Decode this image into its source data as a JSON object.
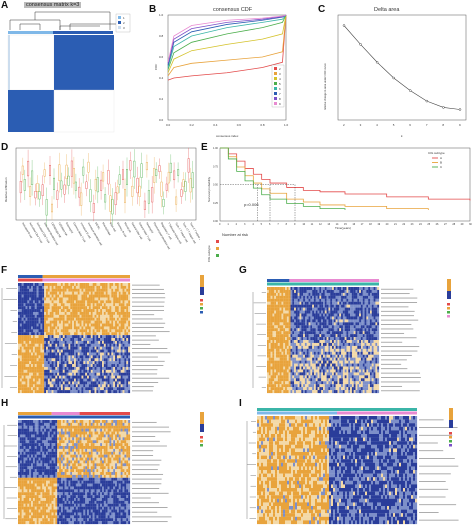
{
  "panels": {
    "a": {
      "label": "A",
      "title": "consensus matrix k=3",
      "legend": [
        "1",
        "2",
        "3"
      ]
    },
    "b": {
      "label": "B",
      "title": "consensus CDF",
      "xlabel": "consensus index",
      "ylabel": "CDF",
      "legend": [
        "2",
        "3",
        "4",
        "5",
        "6",
        "7",
        "8",
        "9"
      ]
    },
    "c": {
      "label": "C",
      "title": "Delta area",
      "xlabel": "k",
      "ylabel": "relative change in area under CDF curve"
    },
    "d": {
      "label": "D",
      "ylabel": "Relative infiltration"
    },
    "e": {
      "label": "E",
      "ylabel": "Survival probability",
      "xlabel": "Time(years)",
      "pvalue": "p=0.006",
      "legend_title": "CIG subtype",
      "legend": [
        "A",
        "B",
        "C"
      ],
      "risk_title": "Number at risk",
      "risk_ylabel": "CIG subtype"
    },
    "f": {
      "label": "F"
    },
    "g": {
      "label": "G"
    },
    "h": {
      "label": "H"
    },
    "i": {
      "label": "I"
    }
  },
  "colors": {
    "blue": "#2b5db3",
    "orange": "#e8a33c",
    "red": "#e34a4a",
    "green": "#4cae4c",
    "pink": "#e88ad1",
    "teal": "#3bb5a8",
    "purple": "#7b4fc8",
    "lightblue": "#7fb8e8"
  },
  "chart_data": [
    {
      "type": "line",
      "panel": "B",
      "title": "consensus CDF",
      "xlabel": "consensus index",
      "ylabel": "CDF",
      "xlim": [
        0,
        1
      ],
      "ylim": [
        0,
        1
      ],
      "x_ticks": [
        "0.0",
        "0.2",
        "0.4",
        "0.6",
        "0.8",
        "1.0"
      ],
      "y_ticks": [
        "0.0",
        "0.2",
        "0.4",
        "0.6",
        "0.8",
        "1.0"
      ],
      "legend_placement": "right",
      "series": [
        {
          "name": "2",
          "x": [
            0,
            0.05,
            0.2,
            0.5,
            0.8,
            0.97,
            1
          ],
          "y": [
            0.38,
            0.4,
            0.42,
            0.45,
            0.5,
            0.55,
            1
          ]
        },
        {
          "name": "3",
          "x": [
            0,
            0.05,
            0.2,
            0.5,
            0.8,
            0.97,
            1
          ],
          "y": [
            0.42,
            0.5,
            0.54,
            0.57,
            0.6,
            0.65,
            1
          ]
        },
        {
          "name": "4",
          "x": [
            0,
            0.05,
            0.2,
            0.5,
            0.8,
            0.97,
            1
          ],
          "y": [
            0.45,
            0.58,
            0.66,
            0.72,
            0.77,
            0.82,
            1
          ]
        },
        {
          "name": "5",
          "x": [
            0,
            0.05,
            0.2,
            0.5,
            0.8,
            0.97,
            1
          ],
          "y": [
            0.48,
            0.64,
            0.74,
            0.82,
            0.88,
            0.93,
            1
          ]
        },
        {
          "name": "6",
          "x": [
            0,
            0.05,
            0.2,
            0.5,
            0.8,
            0.97,
            1
          ],
          "y": [
            0.5,
            0.7,
            0.8,
            0.88,
            0.93,
            0.96,
            1
          ]
        },
        {
          "name": "7",
          "x": [
            0,
            0.05,
            0.2,
            0.5,
            0.8,
            0.97,
            1
          ],
          "y": [
            0.52,
            0.74,
            0.84,
            0.91,
            0.95,
            0.98,
            1
          ]
        },
        {
          "name": "8",
          "x": [
            0,
            0.05,
            0.2,
            0.5,
            0.8,
            0.97,
            1
          ],
          "y": [
            0.54,
            0.77,
            0.87,
            0.93,
            0.96,
            0.985,
            1
          ]
        },
        {
          "name": "9",
          "x": [
            0,
            0.05,
            0.2,
            0.5,
            0.8,
            0.97,
            1
          ],
          "y": [
            0.55,
            0.8,
            0.9,
            0.95,
            0.97,
            0.99,
            1
          ]
        }
      ]
    },
    {
      "type": "line",
      "panel": "C",
      "title": "Delta area",
      "xlabel": "k",
      "ylabel": "relative change in area under CDF curve",
      "x": [
        2,
        3,
        4,
        5,
        6,
        7,
        8,
        9
      ],
      "y": [
        0.9,
        0.72,
        0.55,
        0.4,
        0.28,
        0.18,
        0.12,
        0.1
      ],
      "ylim": [
        0,
        1
      ],
      "x_ticks": [
        "2",
        "3",
        "4",
        "5",
        "6",
        "7",
        "8",
        "9"
      ]
    },
    {
      "type": "line",
      "panel": "E",
      "xlabel": "Time(years)",
      "ylabel": "Survival probability",
      "xlim": [
        0,
        30
      ],
      "ylim": [
        0,
        1
      ],
      "x_ticks": [
        "0",
        "1",
        "2",
        "3",
        "4",
        "5",
        "6",
        "7",
        "8",
        "9",
        "10",
        "11",
        "12",
        "13",
        "14",
        "15",
        "16",
        "17",
        "18",
        "19",
        "20",
        "21",
        "22",
        "23",
        "24",
        "25",
        "26",
        "27",
        "28",
        "29",
        "30"
      ],
      "y_ticks": [
        "0.00",
        "0.25",
        "0.50",
        "0.75",
        "1.00"
      ],
      "annotation": "p=0.006",
      "series": [
        {
          "name": "A",
          "x": [
            0,
            1,
            2,
            3,
            4,
            5,
            6,
            8,
            10,
            12,
            15,
            20,
            25,
            30
          ],
          "y": [
            1,
            0.92,
            0.82,
            0.72,
            0.64,
            0.57,
            0.52,
            0.46,
            0.42,
            0.4,
            0.37,
            0.33,
            0.3,
            0.28
          ]
        },
        {
          "name": "B",
          "x": [
            0,
            1,
            2,
            3,
            4,
            5,
            6,
            8,
            10,
            12,
            15,
            20,
            25
          ],
          "y": [
            1,
            0.88,
            0.74,
            0.62,
            0.52,
            0.44,
            0.38,
            0.3,
            0.26,
            0.22,
            0.2,
            0.17,
            0.15
          ]
        },
        {
          "name": "C",
          "x": [
            0,
            1,
            2,
            3,
            4,
            5,
            6,
            8,
            10,
            12,
            15
          ],
          "y": [
            1,
            0.85,
            0.68,
            0.55,
            0.45,
            0.36,
            0.3,
            0.24,
            0.2,
            0.17,
            0.15
          ]
        }
      ]
    }
  ]
}
